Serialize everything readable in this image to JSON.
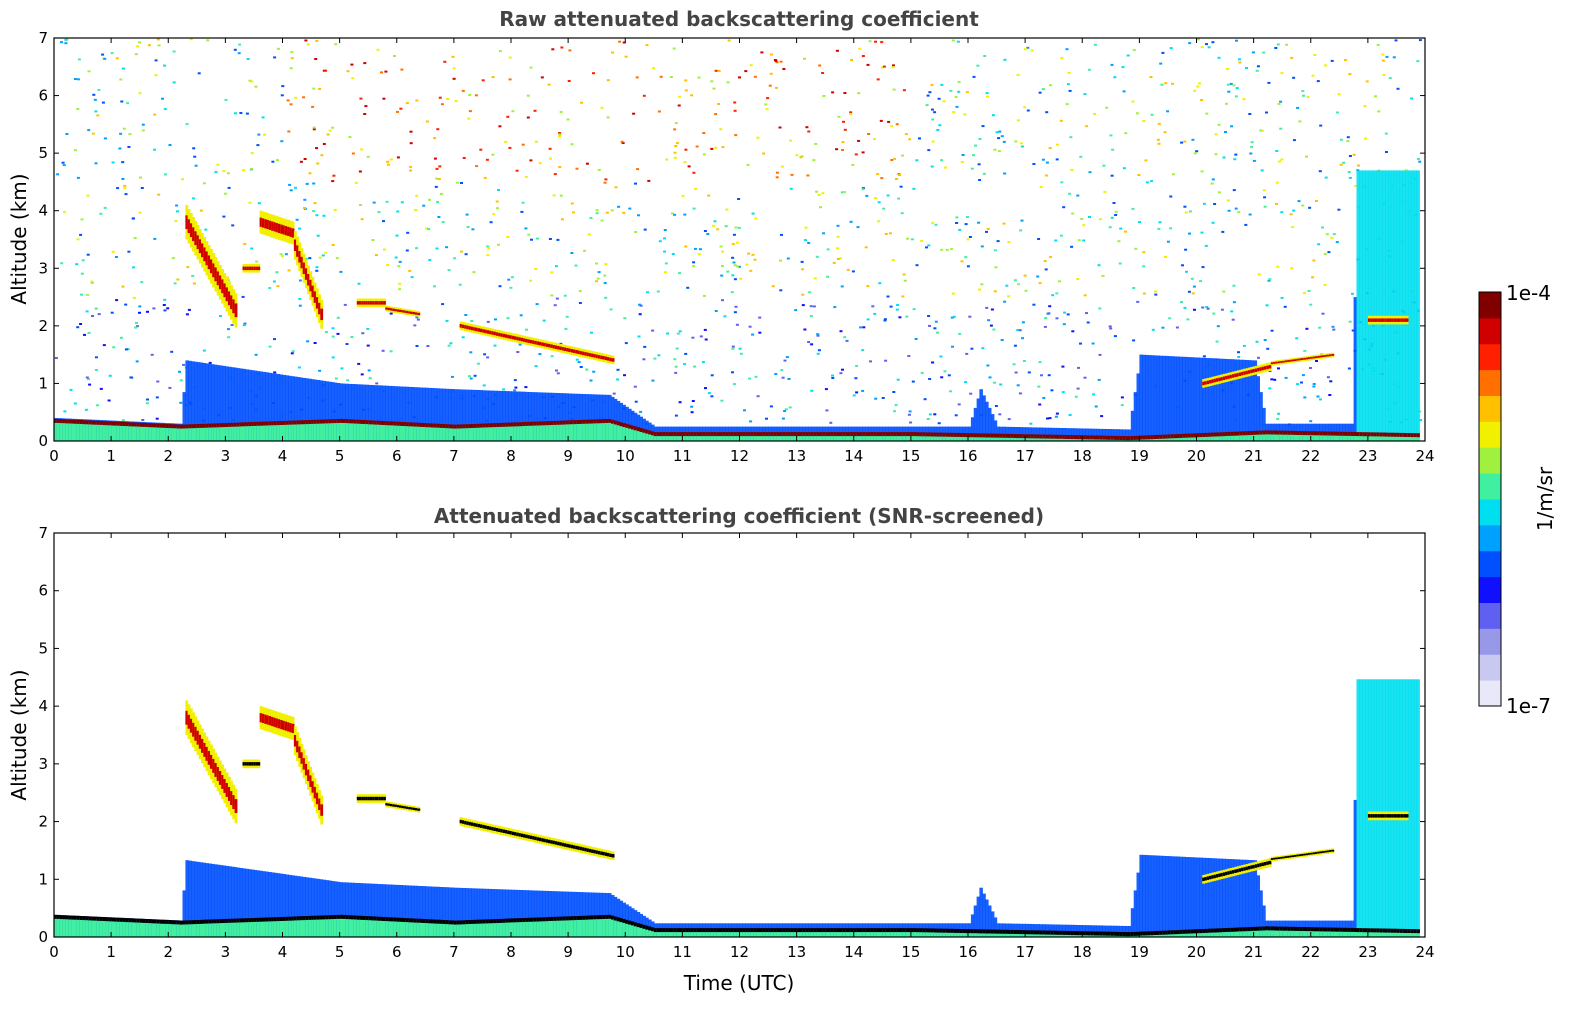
{
  "chart_data": [
    {
      "type": "heatmap",
      "title": "Raw attenuated backscattering coefficient",
      "xlabel": "",
      "ylabel": "Altitude (km)",
      "xlim": [
        0,
        24
      ],
      "ylim": [
        0,
        7
      ],
      "xticks": [
        0,
        1,
        2,
        3,
        4,
        5,
        6,
        7,
        8,
        9,
        10,
        11,
        12,
        13,
        14,
        15,
        16,
        17,
        18,
        19,
        20,
        21,
        22,
        23,
        24
      ],
      "yticks": [
        0,
        1,
        2,
        3,
        4,
        5,
        6,
        7
      ],
      "noise": "full",
      "aerosol_layer": [
        {
          "t": 0.0,
          "top": 0.4
        },
        {
          "t": 2.2,
          "top": 0.3
        },
        {
          "t": 2.3,
          "top": 1.4
        },
        {
          "t": 5.0,
          "top": 1.0
        },
        {
          "t": 7.0,
          "top": 0.9
        },
        {
          "t": 9.7,
          "top": 0.8
        },
        {
          "t": 10.5,
          "top": 0.25
        },
        {
          "t": 16.0,
          "top": 0.25
        },
        {
          "t": 16.2,
          "top": 0.9
        },
        {
          "t": 16.5,
          "top": 0.25
        },
        {
          "t": 18.8,
          "top": 0.2
        },
        {
          "t": 19.0,
          "top": 1.5
        },
        {
          "t": 21.0,
          "top": 1.4
        },
        {
          "t": 21.2,
          "top": 0.3
        },
        {
          "t": 22.7,
          "top": 0.3
        },
        {
          "t": 22.8,
          "top": 4.7
        },
        {
          "t": 23.9,
          "top": 4.7
        }
      ],
      "boundary_layer": [
        {
          "t": 0.0,
          "alt": 0.35
        },
        {
          "t": 2.2,
          "alt": 0.25
        },
        {
          "t": 5.0,
          "alt": 0.35
        },
        {
          "t": 7.0,
          "alt": 0.25
        },
        {
          "t": 9.7,
          "alt": 0.35
        },
        {
          "t": 10.5,
          "alt": 0.12
        },
        {
          "t": 15.0,
          "alt": 0.12
        },
        {
          "t": 18.8,
          "alt": 0.05
        },
        {
          "t": 21.2,
          "alt": 0.15
        },
        {
          "t": 23.9,
          "alt": 0.1
        }
      ],
      "cloud_segments": [
        {
          "start": 2.3,
          "end": 3.2,
          "alt_start": 3.8,
          "alt_end": 2.2,
          "thickness": 0.6
        },
        {
          "start": 3.6,
          "end": 4.2,
          "alt_start": 3.8,
          "alt_end": 3.6,
          "thickness": 0.4
        },
        {
          "start": 4.2,
          "end": 4.7,
          "alt_start": 3.4,
          "alt_end": 2.1,
          "thickness": 0.5
        },
        {
          "start": 3.3,
          "end": 3.6,
          "alt_start": 3.0,
          "alt_end": 3.0,
          "thickness": 0.15
        },
        {
          "start": 5.3,
          "end": 5.8,
          "alt_start": 2.4,
          "alt_end": 2.4,
          "thickness": 0.15
        },
        {
          "start": 5.8,
          "end": 6.4,
          "alt_start": 2.3,
          "alt_end": 2.2,
          "thickness": 0.1
        },
        {
          "start": 7.1,
          "end": 9.8,
          "alt_start": 2.0,
          "alt_end": 1.4,
          "thickness": 0.15
        },
        {
          "start": 20.1,
          "end": 21.3,
          "alt_start": 1.0,
          "alt_end": 1.3,
          "thickness": 0.15
        },
        {
          "start": 21.3,
          "end": 22.4,
          "alt_start": 1.35,
          "alt_end": 1.5,
          "thickness": 0.08
        },
        {
          "start": 23.0,
          "end": 23.7,
          "alt_start": 2.1,
          "alt_end": 2.1,
          "thickness": 0.15
        }
      ]
    },
    {
      "type": "heatmap",
      "title": "Attenuated backscattering coefficient (SNR-screened)",
      "xlabel": "Time (UTC)",
      "ylabel": "Altitude (km)",
      "xlim": [
        0,
        24
      ],
      "ylim": [
        0,
        7
      ],
      "xticks": [
        0,
        1,
        2,
        3,
        4,
        5,
        6,
        7,
        8,
        9,
        10,
        11,
        12,
        13,
        14,
        15,
        16,
        17,
        18,
        19,
        20,
        21,
        22,
        23,
        24
      ],
      "yticks": [
        0,
        1,
        2,
        3,
        4,
        5,
        6,
        7
      ],
      "noise": "screened"
    }
  ],
  "colorbar": {
    "label": "1/m/sr",
    "max_label": "1e-4",
    "min_label": "1e-7",
    "scale": "log",
    "range": [
      1e-07,
      0.0001
    ],
    "colors": [
      "#e8e8f8",
      "#c8c8f0",
      "#9898e8",
      "#6060f0",
      "#1010ff",
      "#0050ff",
      "#00a0ff",
      "#00dff0",
      "#40f0a0",
      "#a0f040",
      "#f0f000",
      "#ffc000",
      "#ff7000",
      "#ff2000",
      "#d00000",
      "#800000"
    ]
  }
}
